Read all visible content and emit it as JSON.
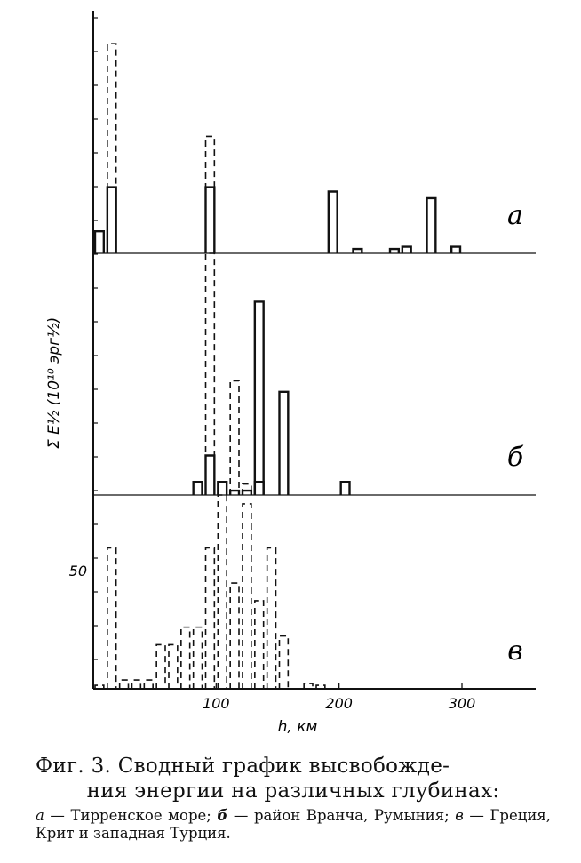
{
  "chart_data": {
    "type": "bar",
    "xlabel": "h, км",
    "ylabel": "Σ E½ (10¹⁰ эрг½)",
    "x_ticks": [
      100,
      200,
      300
    ],
    "xlim": [
      0,
      360
    ],
    "y_tick_label": "50",
    "bin_width_km": 10,
    "panels": [
      {
        "label": "а",
        "ylim": [
          0,
          110
        ],
        "series": [
          {
            "style": "solid",
            "bins": [
              [
                5,
                10
              ],
              [
                15,
                30
              ],
              [
                95,
                30
              ],
              [
                195,
                28
              ],
              [
                215,
                2
              ],
              [
                245,
                2
              ],
              [
                255,
                3
              ],
              [
                275,
                25
              ],
              [
                295,
                3
              ]
            ]
          },
          {
            "style": "dashed",
            "bins": [
              [
                15,
                95
              ],
              [
                95,
                53
              ]
            ]
          }
        ]
      },
      {
        "label": "б",
        "ylim": [
          0,
          110
        ],
        "series": [
          {
            "style": "solid",
            "bins": [
              [
                85,
                6
              ],
              [
                95,
                18
              ],
              [
                105,
                6
              ],
              [
                115,
                2
              ],
              [
                125,
                2
              ],
              [
                135,
                88
              ],
              [
                135,
                6
              ],
              [
                155,
                47
              ],
              [
                205,
                6
              ]
            ]
          },
          {
            "style": "dashed",
            "bins": [
              [
                95,
                110
              ],
              [
                115,
                52
              ],
              [
                125,
                5
              ]
            ]
          }
        ]
      },
      {
        "label": "в",
        "ylim": [
          0,
          110
        ],
        "series": [
          {
            "style": "dashed",
            "bins": [
              [
                5,
                2
              ],
              [
                15,
                80
              ],
              [
                25,
                5
              ],
              [
                35,
                5
              ],
              [
                45,
                5
              ],
              [
                55,
                25
              ],
              [
                65,
                25
              ],
              [
                75,
                35
              ],
              [
                85,
                35
              ],
              [
                95,
                80
              ],
              [
                105,
                110
              ],
              [
                115,
                60
              ],
              [
                125,
                105
              ],
              [
                135,
                50
              ],
              [
                145,
                80
              ],
              [
                155,
                30
              ],
              [
                165,
                0
              ],
              [
                175,
                3
              ],
              [
                185,
                2
              ]
            ]
          }
        ]
      }
    ]
  },
  "caption": {
    "line1": "Фиг. 3. Сводный график высвобожде-",
    "line2": "ния энергии на различных глубинах:",
    "legend_a_key": "а",
    "legend_a_text": " — Тирренское море; ",
    "legend_b_key": "б",
    "legend_b_text": " — район Вранча, Румыния; ",
    "legend_c_key": "в",
    "legend_c_text": " — Греция, Крит и западная Турция."
  }
}
